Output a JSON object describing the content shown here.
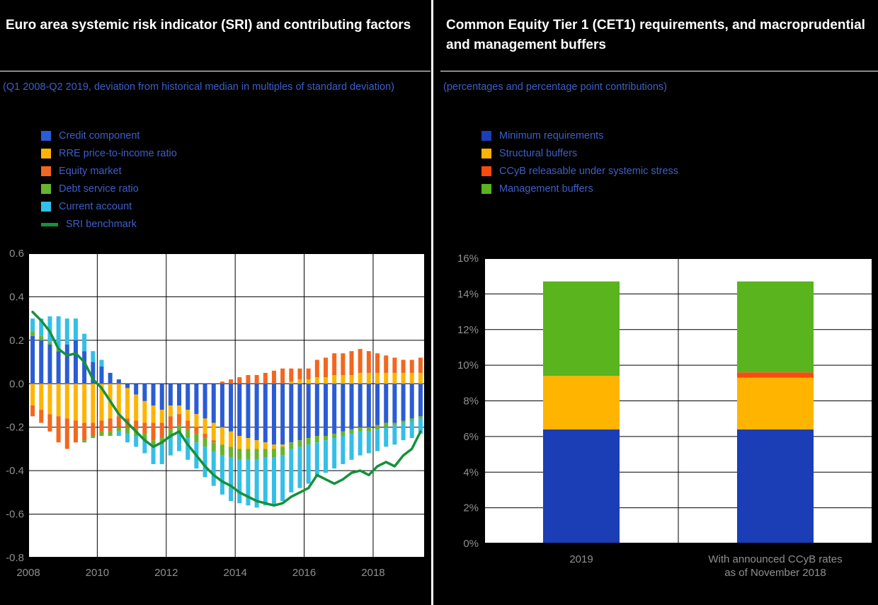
{
  "page": {
    "background": "#000000",
    "axis_label_color": "#8f8f8f"
  },
  "left_panel": {
    "title": "Euro area systemic risk indicator (SRI) and contributing factors",
    "subtitle": "(Q1 2008-Q2 2019, deviation from historical median in multiples of standard deviation)",
    "legend": [
      {
        "label": "Credit component",
        "color": "#2a5cd6",
        "marker": "swatch"
      },
      {
        "label": "RRE price-to-income ratio",
        "color": "#ffb400",
        "marker": "swatch"
      },
      {
        "label": "Equity market",
        "color": "#f4661e",
        "marker": "swatch"
      },
      {
        "label": "Debt service ratio",
        "color": "#69b42e",
        "marker": "swatch"
      },
      {
        "label": "Current account",
        "color": "#33bfe8",
        "marker": "swatch"
      },
      {
        "label": "SRI benchmark",
        "color": "#15913c",
        "marker": "line"
      }
    ]
  },
  "right_panel": {
    "title": "Common Equity Tier 1 (CET1) requirements, and macroprudential and management buffers",
    "subtitle": "(percentages and percentage point contributions)",
    "legend": [
      {
        "label": "Minimum requirements",
        "color": "#1b3db6",
        "marker": "swatch"
      },
      {
        "label": "Structural buffers",
        "color": "#ffb400",
        "marker": "swatch"
      },
      {
        "label": "CCyB releasable under systemic stress",
        "color": "#fa4b0f",
        "marker": "swatch"
      },
      {
        "label": "Management buffers",
        "color": "#59b41e",
        "marker": "swatch"
      }
    ]
  },
  "chart_data": [
    {
      "type": "bar",
      "stacked": true,
      "title": "Euro area systemic risk indicator (SRI) and contributing factors",
      "ylabel": "deviation from historical median (multiples of standard deviation)",
      "ylim": [
        -0.8,
        0.6
      ],
      "yticks": [
        0.6,
        0.4,
        0.2,
        0.0,
        -0.2,
        -0.4,
        -0.6,
        -0.8
      ],
      "grid": true,
      "legend_position": "top-left",
      "x": [
        "2008-Q1",
        "2008-Q2",
        "2008-Q3",
        "2008-Q4",
        "2009-Q1",
        "2009-Q2",
        "2009-Q3",
        "2009-Q4",
        "2010-Q1",
        "2010-Q2",
        "2010-Q3",
        "2010-Q4",
        "2011-Q1",
        "2011-Q2",
        "2011-Q3",
        "2011-Q4",
        "2012-Q1",
        "2012-Q2",
        "2012-Q3",
        "2012-Q4",
        "2013-Q1",
        "2013-Q2",
        "2013-Q3",
        "2013-Q4",
        "2014-Q1",
        "2014-Q2",
        "2014-Q3",
        "2014-Q4",
        "2015-Q1",
        "2015-Q2",
        "2015-Q3",
        "2015-Q4",
        "2016-Q1",
        "2016-Q2",
        "2016-Q3",
        "2016-Q4",
        "2017-Q1",
        "2017-Q2",
        "2017-Q3",
        "2017-Q4",
        "2018-Q1",
        "2018-Q2",
        "2018-Q3",
        "2018-Q4",
        "2019-Q1",
        "2019-Q2"
      ],
      "xticks": [
        {
          "label": "2008",
          "index": 0
        },
        {
          "label": "2010",
          "index": 8
        },
        {
          "label": "2012",
          "index": 16
        },
        {
          "label": "2014",
          "index": 24
        },
        {
          "label": "2016",
          "index": 32
        },
        {
          "label": "2018",
          "index": 40
        }
      ],
      "series": [
        {
          "name": "Credit component",
          "color": "#2a5cd6",
          "values": [
            0.22,
            0.2,
            0.18,
            0.15,
            0.18,
            0.2,
            0.15,
            0.1,
            0.08,
            0.05,
            0.02,
            -0.02,
            -0.05,
            -0.08,
            -0.1,
            -0.12,
            -0.1,
            -0.1,
            -0.12,
            -0.14,
            -0.16,
            -0.18,
            -0.2,
            -0.22,
            -0.24,
            -0.25,
            -0.26,
            -0.27,
            -0.28,
            -0.28,
            -0.27,
            -0.26,
            -0.25,
            -0.24,
            -0.24,
            -0.23,
            -0.22,
            -0.21,
            -0.2,
            -0.2,
            -0.19,
            -0.18,
            -0.18,
            -0.17,
            -0.16,
            -0.15
          ]
        },
        {
          "name": "RRE price-to-income ratio",
          "color": "#ffb400",
          "values": [
            -0.1,
            -0.12,
            -0.14,
            -0.15,
            -0.16,
            -0.17,
            -0.18,
            -0.18,
            -0.17,
            -0.16,
            -0.15,
            -0.14,
            -0.12,
            -0.1,
            -0.08,
            -0.06,
            -0.05,
            -0.04,
            -0.05,
            -0.06,
            -0.07,
            -0.08,
            -0.08,
            -0.07,
            -0.06,
            -0.05,
            -0.04,
            -0.03,
            -0.02,
            -0.01,
            0.01,
            0.02,
            0.02,
            0.03,
            0.03,
            0.04,
            0.04,
            0.04,
            0.05,
            0.05,
            0.05,
            0.05,
            0.05,
            0.05,
            0.05,
            0.05
          ]
        },
        {
          "name": "Equity market",
          "color": "#f4661e",
          "values": [
            -0.05,
            -0.06,
            -0.08,
            -0.12,
            -0.14,
            -0.1,
            -0.08,
            -0.06,
            -0.05,
            -0.06,
            -0.05,
            -0.04,
            -0.04,
            -0.05,
            -0.08,
            -0.07,
            -0.06,
            -0.05,
            -0.04,
            -0.03,
            -0.02,
            -0.01,
            0.01,
            0.02,
            0.03,
            0.04,
            0.04,
            0.05,
            0.06,
            0.07,
            0.06,
            0.05,
            0.05,
            0.08,
            0.09,
            0.1,
            0.1,
            0.11,
            0.11,
            0.1,
            0.09,
            0.08,
            0.07,
            0.06,
            0.06,
            0.07
          ]
        },
        {
          "name": "Debt service ratio",
          "color": "#69b42e",
          "values": [
            0.02,
            0.02,
            0.01,
            0.01,
            0,
            0,
            -0.01,
            -0.01,
            -0.02,
            -0.02,
            -0.02,
            -0.03,
            -0.03,
            -0.03,
            -0.03,
            -0.03,
            -0.04,
            -0.04,
            -0.04,
            -0.04,
            -0.04,
            -0.04,
            -0.05,
            -0.05,
            -0.05,
            -0.05,
            -0.05,
            -0.04,
            -0.04,
            -0.04,
            -0.03,
            -0.03,
            -0.03,
            -0.03,
            -0.02,
            -0.02,
            -0.02,
            -0.02,
            -0.02,
            -0.02,
            -0.02,
            -0.02,
            -0.01,
            -0.01,
            -0.01,
            -0.01
          ]
        },
        {
          "name": "Current account",
          "color": "#33bfe8",
          "values": [
            0.06,
            0.08,
            0.12,
            0.15,
            0.12,
            0.1,
            0.08,
            0.05,
            0.03,
            0,
            -0.02,
            -0.04,
            -0.05,
            -0.06,
            -0.08,
            -0.09,
            -0.08,
            -0.08,
            -0.1,
            -0.12,
            -0.14,
            -0.16,
            -0.18,
            -0.2,
            -0.2,
            -0.21,
            -0.22,
            -0.22,
            -0.22,
            -0.21,
            -0.2,
            -0.19,
            -0.18,
            -0.16,
            -0.15,
            -0.14,
            -0.13,
            -0.12,
            -0.11,
            -0.1,
            -0.1,
            -0.09,
            -0.09,
            -0.08,
            -0.08,
            -0.07
          ]
        }
      ],
      "line_series": {
        "name": "SRI benchmark",
        "color": "#15913c",
        "values": [
          0.33,
          0.29,
          0.24,
          0.16,
          0.13,
          0.14,
          0.1,
          0.02,
          -0.02,
          -0.08,
          -0.14,
          -0.18,
          -0.22,
          -0.26,
          -0.29,
          -0.27,
          -0.24,
          -0.22,
          -0.28,
          -0.33,
          -0.38,
          -0.42,
          -0.45,
          -0.47,
          -0.5,
          -0.52,
          -0.54,
          -0.55,
          -0.56,
          -0.55,
          -0.52,
          -0.5,
          -0.48,
          -0.42,
          -0.44,
          -0.46,
          -0.44,
          -0.41,
          -0.4,
          -0.42,
          -0.38,
          -0.36,
          -0.38,
          -0.33,
          -0.3,
          -0.22
        ]
      }
    },
    {
      "type": "bar",
      "stacked": true,
      "title": "Common Equity Tier 1 (CET1) requirements, and macroprudential and management buffers",
      "ylabel": "percentages and percentage point contributions",
      "ylim": [
        0,
        16
      ],
      "yticks": [
        0,
        2,
        4,
        6,
        8,
        10,
        12,
        14,
        16
      ],
      "ytick_format": "percent",
      "grid": true,
      "categories": [
        "2019",
        "With announced CCyB rates as of November 2018"
      ],
      "category_lines": [
        [
          "2019"
        ],
        [
          "With announced CCyB rates",
          "as of November 2018"
        ]
      ],
      "series": [
        {
          "name": "Minimum requirements",
          "color": "#1b3db6",
          "values": [
            6.4,
            6.4
          ]
        },
        {
          "name": "Structural buffers",
          "color": "#ffb400",
          "values": [
            3.0,
            2.9
          ]
        },
        {
          "name": "CCyB releasable under systemic stress",
          "color": "#fa4b0f",
          "values": [
            0,
            0.3
          ]
        },
        {
          "name": "Management buffers",
          "color": "#59b41e",
          "values": [
            5.3,
            5.1
          ]
        }
      ]
    }
  ]
}
